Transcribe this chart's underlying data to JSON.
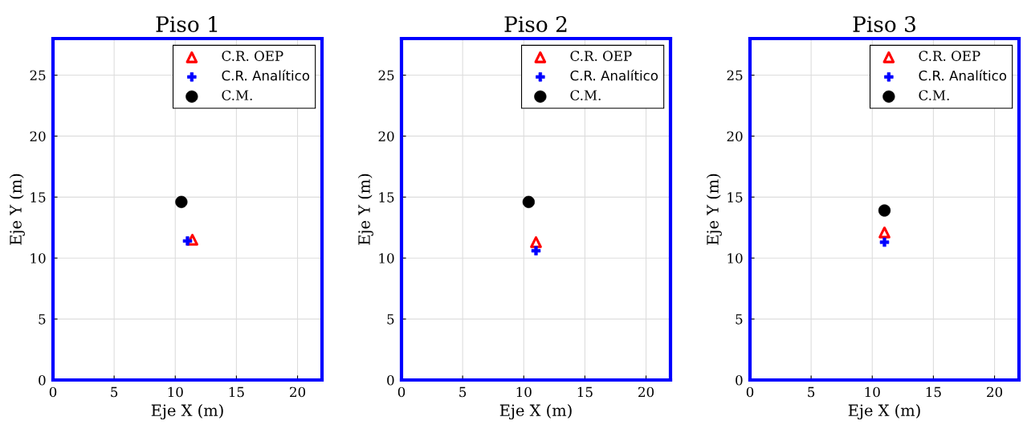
{
  "chart_data": [
    {
      "type": "scatter",
      "title": "Piso 1",
      "xlabel": "Eje X (m)",
      "ylabel": "Eje Y (m)",
      "xlim": [
        0,
        22
      ],
      "ylim": [
        0,
        28
      ],
      "xticks": [
        0,
        5,
        10,
        15,
        20
      ],
      "yticks": [
        0,
        5,
        10,
        15,
        20,
        25
      ],
      "grid": true,
      "legend": "top right",
      "series": [
        {
          "name": "C.R. OEP",
          "color": "#ff0000",
          "marker": "triangle",
          "x": [
            11.4
          ],
          "values": [
            11.5
          ]
        },
        {
          "name": "C.R. Analítico",
          "color": "#0000ff",
          "marker": "cross",
          "x": [
            11.0
          ],
          "values": [
            11.4
          ]
        },
        {
          "name": "C.M.",
          "color": "#000000",
          "marker": "circle",
          "x": [
            10.5
          ],
          "values": [
            14.6
          ]
        }
      ]
    },
    {
      "type": "scatter",
      "title": "Piso 2",
      "xlabel": "Eje X (m)",
      "ylabel": "Eje Y (m)",
      "xlim": [
        0,
        22
      ],
      "ylim": [
        0,
        28
      ],
      "xticks": [
        0,
        5,
        10,
        15,
        20
      ],
      "yticks": [
        0,
        5,
        10,
        15,
        20,
        25
      ],
      "grid": true,
      "legend": "top right",
      "series": [
        {
          "name": "C.R. OEP",
          "color": "#ff0000",
          "marker": "triangle",
          "x": [
            11.0
          ],
          "values": [
            11.3
          ]
        },
        {
          "name": "C.R. Analítico",
          "color": "#0000ff",
          "marker": "cross",
          "x": [
            11.0
          ],
          "values": [
            10.6
          ]
        },
        {
          "name": "C.M.",
          "color": "#000000",
          "marker": "circle",
          "x": [
            10.4
          ],
          "values": [
            14.6
          ]
        }
      ]
    },
    {
      "type": "scatter",
      "title": "Piso 3",
      "xlabel": "Eje X (m)",
      "ylabel": "Eje Y (m)",
      "xlim": [
        0,
        22
      ],
      "ylim": [
        0,
        28
      ],
      "xticks": [
        0,
        5,
        10,
        15,
        20
      ],
      "yticks": [
        0,
        5,
        10,
        15,
        20,
        25
      ],
      "grid": true,
      "legend": "top right",
      "series": [
        {
          "name": "C.R. OEP",
          "color": "#ff0000",
          "marker": "triangle",
          "x": [
            11.0
          ],
          "values": [
            12.1
          ]
        },
        {
          "name": "C.R. Analítico",
          "color": "#0000ff",
          "marker": "cross",
          "x": [
            11.0
          ],
          "values": [
            11.3
          ]
        },
        {
          "name": "C.M.",
          "color": "#000000",
          "marker": "circle",
          "x": [
            11.0
          ],
          "values": [
            13.9
          ]
        }
      ]
    }
  ]
}
